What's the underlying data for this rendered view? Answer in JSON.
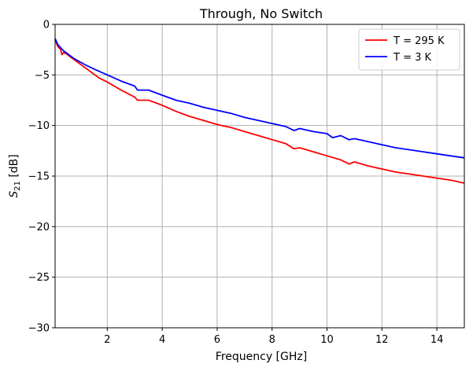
{
  "chart_data": {
    "type": "line",
    "title": "Through, No Switch",
    "xlabel": "Frequency [GHz]",
    "ylabel": "S21 [dB]",
    "xlim": [
      0.1,
      15
    ],
    "ylim": [
      -30,
      0
    ],
    "xticks": [
      2,
      4,
      6,
      8,
      10,
      12,
      14
    ],
    "yticks": [
      -30,
      -25,
      -20,
      -15,
      -10,
      -5,
      0
    ],
    "grid": true,
    "legend_position": "top-right",
    "series": [
      {
        "name": "T = 295 K",
        "color": "#ff0000",
        "x": [
          0.1,
          0.2,
          0.3,
          0.35,
          0.4,
          0.5,
          0.6,
          0.8,
          1,
          1.2,
          1.5,
          1.7,
          2,
          2.5,
          3,
          3.1,
          3.5,
          4,
          4.5,
          5,
          5.5,
          6,
          6.5,
          7,
          7.5,
          8,
          8.5,
          8.8,
          9,
          9.5,
          10,
          10.5,
          10.8,
          11,
          11.5,
          12,
          12.5,
          13,
          13.5,
          14,
          14.5,
          15
        ],
        "y": [
          -1.5,
          -2.2,
          -2.5,
          -3.0,
          -2.8,
          -2.9,
          -3.1,
          -3.5,
          -3.9,
          -4.3,
          -4.9,
          -5.3,
          -5.7,
          -6.5,
          -7.2,
          -7.5,
          -7.5,
          -8.0,
          -8.6,
          -9.1,
          -9.5,
          -9.9,
          -10.2,
          -10.6,
          -11.0,
          -11.4,
          -11.8,
          -12.3,
          -12.2,
          -12.6,
          -13.0,
          -13.4,
          -13.8,
          -13.6,
          -14.0,
          -14.3,
          -14.6,
          -14.8,
          -15.0,
          -15.2,
          -15.4,
          -15.7
        ]
      },
      {
        "name": "T = 3 K",
        "color": "#0000ff",
        "x": [
          0.1,
          0.2,
          0.3,
          0.4,
          0.5,
          0.6,
          0.8,
          1,
          1.2,
          1.5,
          2,
          2.5,
          3,
          3.1,
          3.5,
          4,
          4.5,
          5,
          5.5,
          6,
          6.5,
          7,
          7.5,
          8,
          8.5,
          8.8,
          9,
          9.5,
          10,
          10.2,
          10.5,
          10.8,
          11,
          11.5,
          12,
          12.5,
          13,
          13.5,
          14,
          14.5,
          15
        ],
        "y": [
          -1.4,
          -2.0,
          -2.3,
          -2.6,
          -2.8,
          -3.0,
          -3.4,
          -3.7,
          -4.0,
          -4.4,
          -5.0,
          -5.6,
          -6.1,
          -6.5,
          -6.5,
          -7.0,
          -7.5,
          -7.8,
          -8.2,
          -8.5,
          -8.8,
          -9.2,
          -9.5,
          -9.8,
          -10.1,
          -10.5,
          -10.3,
          -10.6,
          -10.8,
          -11.2,
          -11.0,
          -11.4,
          -11.3,
          -11.6,
          -11.9,
          -12.2,
          -12.4,
          -12.6,
          -12.8,
          -13.0,
          -13.2
        ]
      }
    ]
  }
}
